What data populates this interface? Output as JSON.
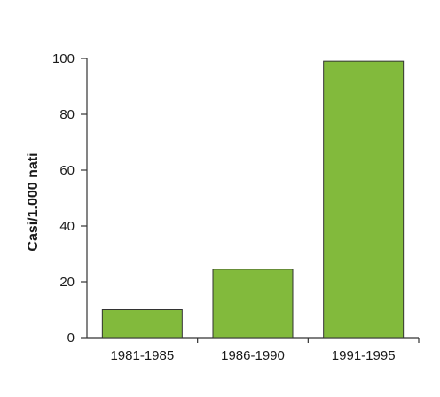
{
  "chart_data": {
    "type": "bar",
    "categories": [
      "1981-1985",
      "1986-1990",
      "1991-1995"
    ],
    "values": [
      10,
      24.5,
      99
    ],
    "title": "",
    "xlabel": "",
    "ylabel": "Casi/1.000 nati",
    "ylim": [
      0,
      100
    ],
    "yticks": [
      "0",
      "20",
      "40",
      "60",
      "80",
      "100"
    ],
    "grid": false,
    "bar_color": "#82ba3c",
    "bar_edge_color": "#333333"
  }
}
